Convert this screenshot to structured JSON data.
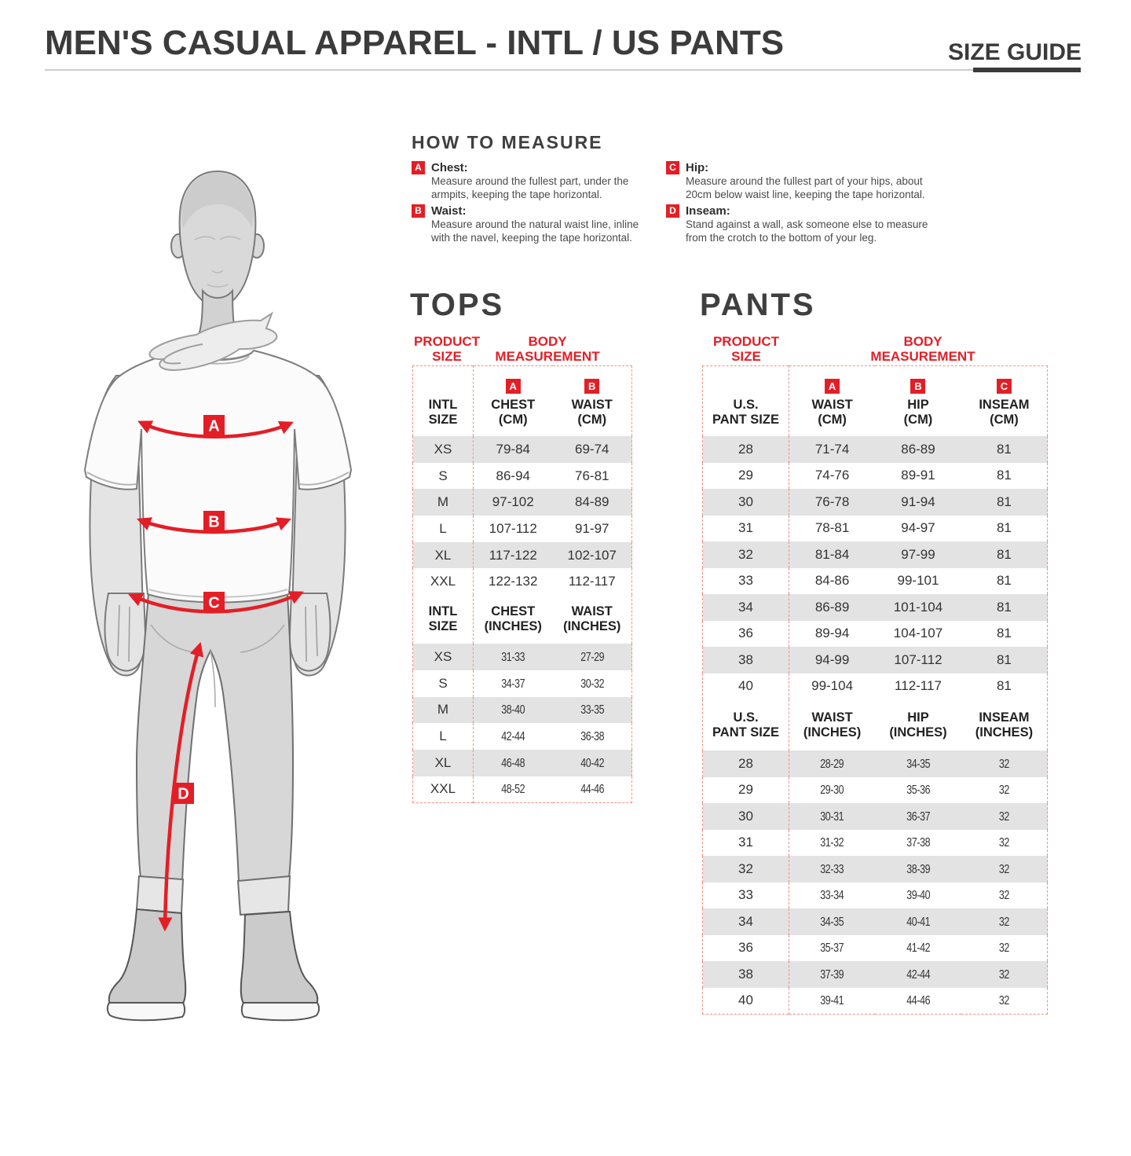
{
  "page": {
    "title_heading": "MEN'S CASUAL APPAREL - INTL / US PANTS",
    "size_guide_label": "SIZE GUIDE"
  },
  "colors": {
    "accent_red": "#e41e26",
    "row_gray": "#e3e3e3",
    "table_dash_border": "#f19184",
    "heading_gray": "#3b3b3b",
    "underline_dark": "#3a3a3a",
    "rule_light": "#cccccc"
  },
  "how_to_measure": {
    "title": "HOW TO MEASURE",
    "items": [
      {
        "badge": "A",
        "label": "Chest:",
        "line1": "Measure around the fullest part, under the",
        "line2": "armpits, keeping the tape horizontal."
      },
      {
        "badge": "B",
        "label": "Waist:",
        "line1": "Measure around the natural waist line, inline",
        "line2": "with the navel, keeping the tape horizontal."
      },
      {
        "badge": "C",
        "label": "Hip:",
        "line1": "Measure around the fullest part of your hips, about",
        "line2": "20cm below waist line, keeping the tape horizontal."
      },
      {
        "badge": "D",
        "label": "Inseam:",
        "line1": "Stand against a wall, ask someone else to measure",
        "line2": "from the crotch to the bottom of your leg."
      }
    ]
  },
  "figure": {
    "labels": [
      "A",
      "B",
      "C",
      "D"
    ]
  },
  "tops": {
    "title": "TOPS",
    "product_size_l1": "PRODUCT",
    "product_size_l2": "SIZE",
    "body_measurement_l1": "BODY",
    "body_measurement_l2": "MEASUREMENT",
    "cm_header": {
      "size_l1": "INTL",
      "size_l2": "SIZE",
      "col1_badge": "A",
      "col1_l1": "CHEST",
      "col1_l2": "(CM)",
      "col2_badge": "B",
      "col2_l1": "WAIST",
      "col2_l2": "(CM)"
    },
    "cm_rows": [
      [
        "XS",
        "79-84",
        "69-74"
      ],
      [
        "S",
        "86-94",
        "76-81"
      ],
      [
        "M",
        "97-102",
        "84-89"
      ],
      [
        "L",
        "107-112",
        "91-97"
      ],
      [
        "XL",
        "117-122",
        "102-107"
      ],
      [
        "XXL",
        "122-132",
        "112-117"
      ]
    ],
    "inch_header": {
      "size_l1": "INTL",
      "size_l2": "SIZE",
      "col1_l1": "CHEST",
      "col1_l2": "(INCHES)",
      "col2_l1": "WAIST",
      "col2_l2": "(INCHES)"
    },
    "inch_rows": [
      [
        "XS",
        "31-33",
        "27-29"
      ],
      [
        "S",
        "34-37",
        "30-32"
      ],
      [
        "M",
        "38-40",
        "33-35"
      ],
      [
        "L",
        "42-44",
        "36-38"
      ],
      [
        "XL",
        "46-48",
        "40-42"
      ],
      [
        "XXL",
        "48-52",
        "44-46"
      ]
    ]
  },
  "pants": {
    "title": "PANTS",
    "product_size_l1": "PRODUCT",
    "product_size_l2": "SIZE",
    "body_measurement_l1": "BODY",
    "body_measurement_l2": "MEASUREMENT",
    "cm_header": {
      "size_l1": "U.S.",
      "size_l2": "PANT SIZE",
      "col1_badge": "A",
      "col1_l1": "WAIST",
      "col1_l2": "(CM)",
      "col2_badge": "B",
      "col2_l1": "HIP",
      "col2_l2": "(CM)",
      "col3_badge": "C",
      "col3_l1": "INSEAM",
      "col3_l2": "(CM)"
    },
    "cm_rows": [
      [
        "28",
        "71-74",
        "86-89",
        "81"
      ],
      [
        "29",
        "74-76",
        "89-91",
        "81"
      ],
      [
        "30",
        "76-78",
        "91-94",
        "81"
      ],
      [
        "31",
        "78-81",
        "94-97",
        "81"
      ],
      [
        "32",
        "81-84",
        "97-99",
        "81"
      ],
      [
        "33",
        "84-86",
        "99-101",
        "81"
      ],
      [
        "34",
        "86-89",
        "101-104",
        "81"
      ],
      [
        "36",
        "89-94",
        "104-107",
        "81"
      ],
      [
        "38",
        "94-99",
        "107-112",
        "81"
      ],
      [
        "40",
        "99-104",
        "112-117",
        "81"
      ]
    ],
    "inch_header": {
      "size_l1": "U.S.",
      "size_l2": "PANT SIZE",
      "col1_l1": "WAIST",
      "col1_l2": "(INCHES)",
      "col2_l1": "HIP",
      "col2_l2": "(INCHES)",
      "col3_l1": "INSEAM",
      "col3_l2": "(INCHES)"
    },
    "inch_rows": [
      [
        "28",
        "28-29",
        "34-35",
        "32"
      ],
      [
        "29",
        "29-30",
        "35-36",
        "32"
      ],
      [
        "30",
        "30-31",
        "36-37",
        "32"
      ],
      [
        "31",
        "31-32",
        "37-38",
        "32"
      ],
      [
        "32",
        "32-33",
        "38-39",
        "32"
      ],
      [
        "33",
        "33-34",
        "39-40",
        "32"
      ],
      [
        "34",
        "34-35",
        "40-41",
        "32"
      ],
      [
        "36",
        "35-37",
        "41-42",
        "32"
      ],
      [
        "38",
        "37-39",
        "42-44",
        "32"
      ],
      [
        "40",
        "39-41",
        "44-46",
        "32"
      ]
    ]
  }
}
